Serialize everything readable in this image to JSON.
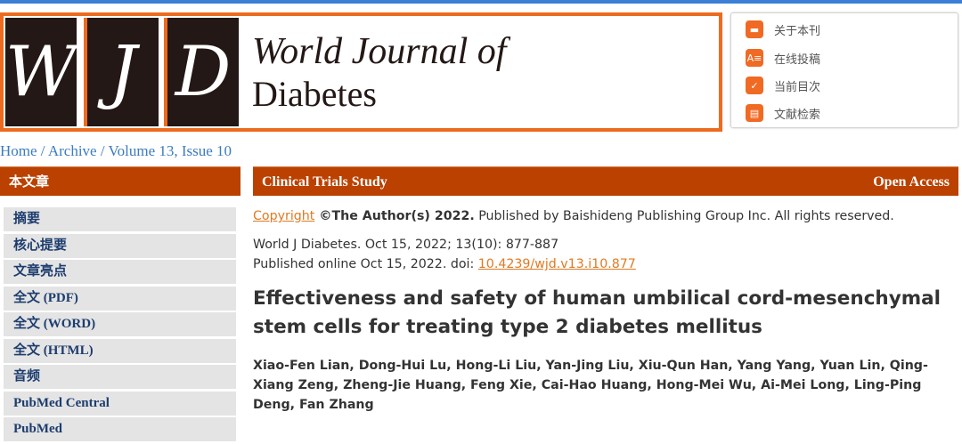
{
  "logo": {
    "letters": [
      "W",
      "J",
      "D"
    ],
    "line1": "World Journal of",
    "line2": "Diabetes"
  },
  "quick_links": [
    {
      "label": "关于本刊",
      "icon": "book-icon"
    },
    {
      "label": "在线投稿",
      "icon": "submit-form-icon"
    },
    {
      "label": "当前目次",
      "icon": "clipboard-check-icon"
    },
    {
      "label": "文献检索",
      "icon": "clipboard-search-icon"
    }
  ],
  "breadcrumb": {
    "home": "Home",
    "archive": "Archive",
    "issue": "Volume 13, Issue 10",
    "sep": " / "
  },
  "sidebar": {
    "title": "本文章",
    "items": [
      "摘要",
      "核心提要",
      "文章亮点",
      "全文 (PDF)",
      "全文 (WORD)",
      "全文 (HTML)",
      "音频",
      "PubMed Central",
      "PubMed"
    ]
  },
  "article": {
    "category": "Clinical Trials Study",
    "access": "Open Access",
    "copyright_link": "Copyright",
    "copyright_bold": " ©The Author(s) 2022.",
    "copyright_rest": " Published by Baishideng Publishing Group Inc. All rights reserved.",
    "citation": "World J Diabetes. Oct 15, 2022; 13(10): 877-887",
    "published": "Published online Oct 15, 2022. doi: ",
    "doi": "10.4239/wjd.v13.i10.877",
    "title": "Effectiveness and safety of human umbilical cord-mesenchymal stem cells for treating type 2 diabetes mellitus",
    "authors": "Xiao-Fen Lian, Dong-Hui Lu, Hong-Li Liu, Yan-Jing Liu, Xiu-Qun Han, Yang Yang, Yuan Lin, Qing-Xiang Zeng, Zheng-Jie Huang, Feng Xie, Cai-Hao Huang, Hong-Mei Wu, Ai-Mei Long, Ling-Ping Deng, Fan Zhang"
  },
  "colors": {
    "accent": "#bb4100",
    "logo_orange": "#ec6b1e",
    "link": "#3b7bc0",
    "top_bar": "#3b7fd6"
  }
}
